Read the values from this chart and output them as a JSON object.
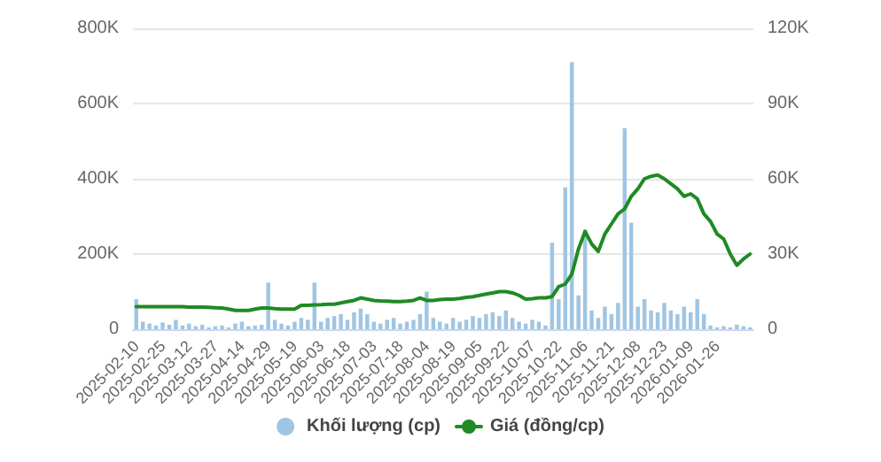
{
  "chart_data": {
    "type": "bar",
    "categories": [
      "2025-02-10",
      null,
      null,
      null,
      "2025-02-25",
      null,
      null,
      null,
      "2025-03-12",
      null,
      null,
      null,
      "2025-03-27",
      null,
      null,
      null,
      "2025-04-14",
      null,
      null,
      null,
      "2025-04-29",
      null,
      null,
      null,
      "2025-05-19",
      null,
      null,
      null,
      "2025-06-03",
      null,
      null,
      null,
      "2025-06-18",
      null,
      null,
      null,
      "2025-07-03",
      null,
      null,
      null,
      "2025-07-18",
      null,
      null,
      null,
      "2025-08-04",
      null,
      null,
      null,
      "2025-08-19",
      null,
      null,
      null,
      "2025-09-05",
      null,
      null,
      null,
      "2025-09-22",
      null,
      null,
      null,
      "2025-10-07",
      null,
      null,
      null,
      "2025-10-22",
      null,
      null,
      null,
      "2025-11-06",
      null,
      null,
      null,
      "2025-11-21",
      null,
      null,
      null,
      "2025-12-08",
      null,
      null,
      null,
      "2025-12-23",
      null,
      null,
      null,
      "2026-01-09",
      null,
      null,
      null,
      "2026-01-26",
      null,
      null,
      null,
      null,
      null
    ],
    "series": [
      {
        "name": "Khối lượng (cp)",
        "color": "#9fc5e2",
        "values": [
          80000,
          20000,
          15000,
          10000,
          18000,
          12000,
          25000,
          10000,
          15000,
          8000,
          12000,
          5000,
          8000,
          10000,
          5000,
          15000,
          20000,
          8000,
          10000,
          12000,
          124000,
          25000,
          15000,
          10000,
          20000,
          30000,
          25000,
          124000,
          20000,
          30000,
          35000,
          40000,
          25000,
          45000,
          55000,
          40000,
          20000,
          15000,
          25000,
          30000,
          15000,
          20000,
          25000,
          40000,
          100000,
          30000,
          20000,
          15000,
          30000,
          20000,
          25000,
          35000,
          30000,
          40000,
          45000,
          35000,
          50000,
          30000,
          20000,
          15000,
          25000,
          20000,
          10000,
          230000,
          80000,
          377000,
          710000,
          90000,
          265000,
          50000,
          30000,
          60000,
          40000,
          70000,
          535000,
          283000,
          60000,
          80000,
          50000,
          45000,
          70000,
          50000,
          40000,
          60000,
          45000,
          80000,
          40000,
          10000,
          5000,
          8000,
          5000,
          12000,
          8000,
          5000
        ]
      },
      {
        "name": "Giá (đồng/cp)",
        "type": "line",
        "axis": "y2",
        "color": "#1f8a24",
        "values": [
          9000,
          9000,
          9000,
          9000,
          9000,
          9000,
          9000,
          9000,
          8800,
          8800,
          8800,
          8700,
          8600,
          8500,
          8000,
          7500,
          7500,
          7500,
          8000,
          8500,
          8500,
          8200,
          8000,
          8000,
          8000,
          9500,
          9500,
          9700,
          9800,
          10000,
          10000,
          10500,
          11000,
          11500,
          12500,
          12000,
          11500,
          11300,
          11200,
          11000,
          11000,
          11200,
          11500,
          12500,
          11500,
          11500,
          11800,
          12000,
          12000,
          12300,
          12700,
          13000,
          13500,
          14000,
          14500,
          15000,
          15000,
          14500,
          13500,
          12000,
          12200,
          12500,
          12500,
          13000,
          17000,
          18000,
          22000,
          32000,
          39000,
          34000,
          31000,
          38000,
          42000,
          46000,
          48000,
          53000,
          56000,
          60000,
          61000,
          61500,
          60000,
          58000,
          56000,
          53000,
          54000,
          52000,
          46000,
          43000,
          38000,
          36000,
          30000,
          25500,
          28000,
          30000
        ]
      }
    ],
    "ylim": [
      0,
      800000
    ],
    "yticks": [
      {
        "value": 0,
        "label": "0"
      },
      {
        "value": 200000,
        "label": "200K"
      },
      {
        "value": 400000,
        "label": "400K"
      },
      {
        "value": 600000,
        "label": "600K"
      },
      {
        "value": 800000,
        "label": "800K"
      }
    ],
    "y2lim": [
      0,
      120000
    ],
    "y2ticks": [
      {
        "value": 0,
        "label": "0"
      },
      {
        "value": 30000,
        "label": "30K"
      },
      {
        "value": 60000,
        "label": "60K"
      },
      {
        "value": 90000,
        "label": "90K"
      },
      {
        "value": 120000,
        "label": "120K"
      }
    ],
    "grid": "y",
    "legend": "bottom",
    "marker": "none",
    "line_style": "solid"
  }
}
